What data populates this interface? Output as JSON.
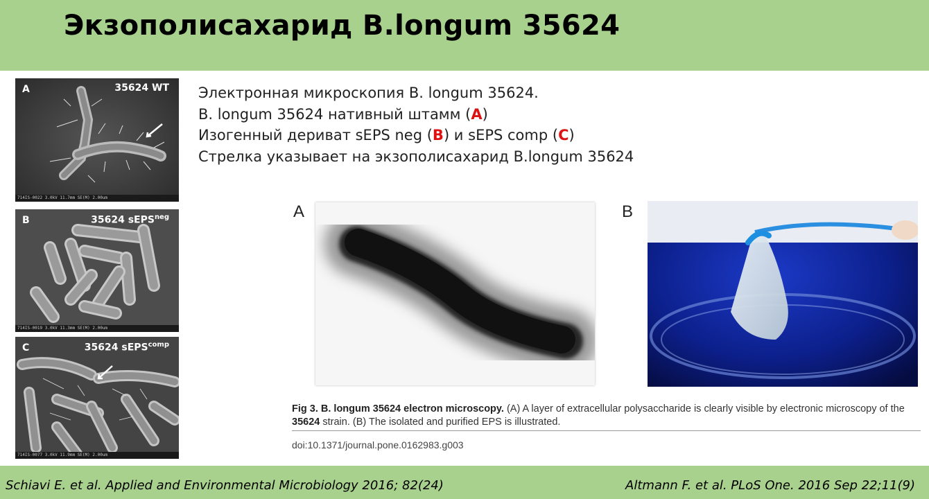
{
  "slide": {
    "title": "Экзополисахарид  B.longum 35624"
  },
  "sem_panels": [
    {
      "letter": "A",
      "label": "35624 WT",
      "sup": "",
      "footer": "714IS-0022 3.0kV 11.7mm SE(M)                          2.00um"
    },
    {
      "letter": "B",
      "label": "35624 sEPS",
      "sup": "neg",
      "footer": "714IS-0019 3.0kV 11.3mm SE(M)                          2.00um"
    },
    {
      "letter": "C",
      "label": "35624 sEPS",
      "sup": "comp",
      "footer": "714IS-0077 3.0kV 11.9mm SE(M)                          2.00um"
    }
  ],
  "description": {
    "line1": "Электронная микроскопия B. longum 35624.",
    "line2_pre": "B. longum 35624 нативный штамм (",
    "line2_a": "A",
    "line2_post": ")",
    "line3_pre": "Изогенный дериват sEPS neg (",
    "line3_b": "B",
    "line3_mid": ") и sEPS comp (",
    "line3_c": "C",
    "line3_post": ")",
    "line4": "Стрелка указывает на экзополисахарид B.longum 35624"
  },
  "figure": {
    "panel_a": "A",
    "panel_b": "B",
    "caption_bold": "Fig 3. B. longum 35624 electron microscopy.",
    "caption_1": " (A) A layer of extracellular polysaccharide is clearly visible by electronic microscopy of the ",
    "caption_strain": "35624",
    "caption_2": " strain. (B) The isolated and purified EPS is illustrated.",
    "doi": "doi:10.1371/journal.pone.0162983.g003"
  },
  "citations": {
    "left": "Schiavi E. et al. Applied and Environmental Microbiology 2016; 82(24)",
    "right": "Altmann F. et al. PLoS One. 2016 Sep 22;11(9)"
  },
  "colors": {
    "header_bg": "#a9d18e",
    "highlight_red": "#d11111"
  }
}
